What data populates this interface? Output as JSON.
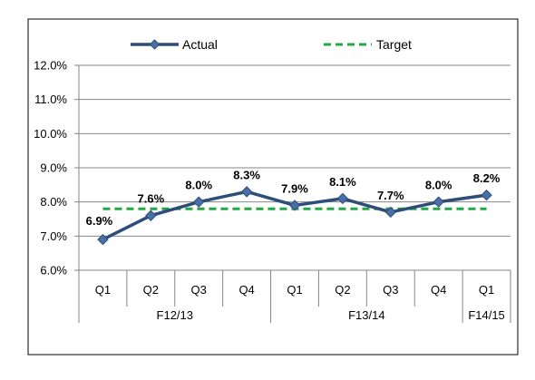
{
  "chart_data": {
    "type": "line",
    "categories": [
      "Q1",
      "Q2",
      "Q3",
      "Q4",
      "Q1",
      "Q2",
      "Q3",
      "Q4",
      "Q1"
    ],
    "groups": [
      {
        "label": "F12/13",
        "span": 4
      },
      {
        "label": "F13/14",
        "span": 4
      },
      {
        "label": "F14/15",
        "span": 1
      }
    ],
    "series": [
      {
        "name": "Actual",
        "values": [
          6.9,
          7.6,
          8.0,
          8.3,
          7.9,
          8.1,
          7.7,
          8.0,
          8.2
        ],
        "labels": [
          "6.9%",
          "7.6%",
          "8.0%",
          "8.3%",
          "7.9%",
          "8.1%",
          "7.7%",
          "8.0%",
          "8.2%"
        ],
        "color": "#2e4e7a",
        "marker": "diamond"
      },
      {
        "name": "Target",
        "values": [
          7.8,
          7.8,
          7.8,
          7.8,
          7.8,
          7.8,
          7.8,
          7.8,
          7.8
        ],
        "color": "#22a844",
        "line_style": "dashed"
      }
    ],
    "ylim": [
      6.0,
      12.0
    ],
    "yticks": [
      "6.0%",
      "7.0%",
      "8.0%",
      "9.0%",
      "10.0%",
      "11.0%",
      "12.0%"
    ],
    "grid": true,
    "legend_position": "top"
  }
}
